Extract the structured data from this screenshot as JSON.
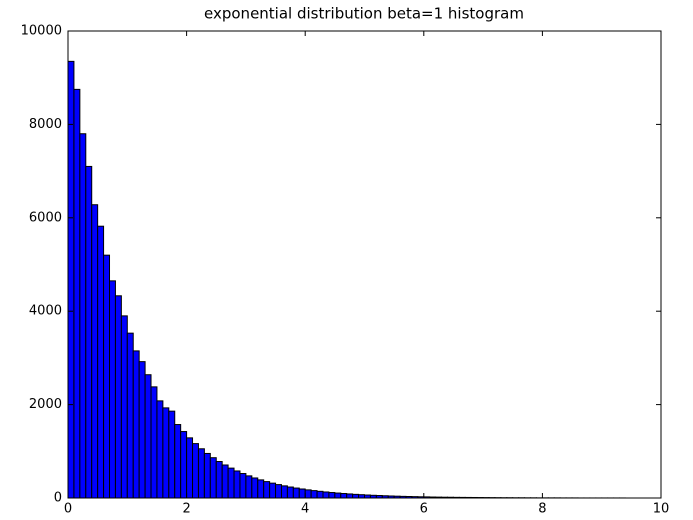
{
  "chart_data": {
    "type": "histogram",
    "title": "exponential distribution beta=1 histogram",
    "color": "#0000ff",
    "edgecolor": "#000000",
    "bins": [
      0,
      0.1,
      0.2,
      0.3,
      0.4,
      0.5,
      0.6,
      0.7,
      0.8,
      0.9,
      1,
      1.1,
      1.2,
      1.3,
      1.4,
      1.5,
      1.6,
      1.7,
      1.8,
      1.9,
      2,
      2.1,
      2.2,
      2.3,
      2.4,
      2.5,
      2.6,
      2.7,
      2.8,
      2.9,
      3,
      3.1,
      3.2,
      3.3,
      3.4,
      3.5,
      3.6,
      3.7,
      3.8,
      3.9,
      4,
      4.1,
      4.2,
      4.3,
      4.4,
      4.5,
      4.6,
      4.7,
      4.8,
      4.9,
      5,
      5.1,
      5.2,
      5.3,
      5.4,
      5.5,
      5.6,
      5.7,
      5.8,
      5.9,
      6,
      6.1,
      6.2,
      6.3,
      6.4,
      6.5,
      6.6,
      6.7,
      6.8,
      6.9,
      7,
      7.1,
      7.2,
      7.3,
      7.4,
      7.5,
      7.6,
      7.7,
      7.8,
      7.9,
      8,
      8.1,
      8.2,
      8.3,
      8.4,
      8.5,
      8.6,
      8.7,
      8.8,
      8.9,
      9,
      9.1,
      9.2,
      9.3,
      9.4,
      9.5,
      9.6,
      9.7,
      9.8,
      9.9,
      10
    ],
    "counts": [
      9350,
      8750,
      7800,
      7100,
      6280,
      5820,
      5200,
      4650,
      4330,
      3900,
      3530,
      3150,
      2920,
      2640,
      2380,
      2080,
      1930,
      1860,
      1573,
      1423,
      1288,
      1165,
      1054,
      954,
      863,
      781,
      707,
      640,
      579,
      524,
      474,
      429,
      388,
      351,
      318,
      287,
      260,
      235,
      213,
      193,
      174,
      158,
      143,
      129,
      117,
      106,
      96,
      87,
      78,
      71,
      64,
      58,
      53,
      48,
      43,
      39,
      35,
      32,
      29,
      26,
      24,
      21,
      19,
      17,
      16,
      14,
      13,
      12,
      11,
      10,
      9,
      8,
      7,
      6,
      6,
      5,
      5,
      4,
      4,
      3,
      3,
      3,
      3,
      2,
      2,
      2,
      1,
      1,
      1,
      1,
      1,
      1,
      1,
      1,
      0,
      0,
      0,
      0,
      0,
      0
    ],
    "xlim": [
      0,
      10
    ],
    "xticks": [
      0,
      2,
      4,
      6,
      8,
      10
    ],
    "ylim": [
      0,
      10000
    ],
    "yticks": [
      0,
      2000,
      4000,
      6000,
      8000,
      10000
    ]
  }
}
